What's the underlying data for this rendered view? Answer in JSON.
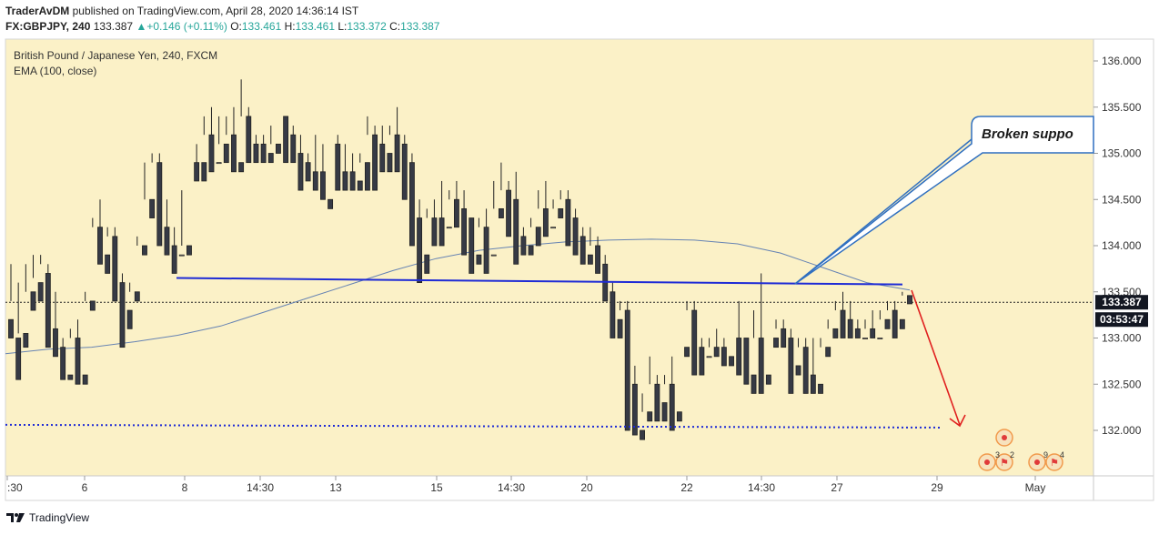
{
  "header": {
    "author": "TraderAvDM",
    "published": "published on TradingView.com, April 28, 2020 14:36:14 IST",
    "symbol": "FX:GBPJPY, 240",
    "last": "133.387",
    "change": "+0.146 (+0.11%)",
    "o_label": "O:",
    "o_val": "133.461",
    "h_label": "H:",
    "h_val": "133.461",
    "l_label": "L:",
    "l_val": "133.372",
    "c_label": "C:",
    "c_val": "133.387"
  },
  "legend": {
    "title": "British Pound / Japanese Yen, 240, FXCM",
    "indicator": "EMA (100, close)"
  },
  "annotation": {
    "text": "Broken suppo"
  },
  "badges": {
    "price": "133.387",
    "countdown": "03:53:47"
  },
  "markers": [
    "3",
    "2",
    "9",
    "4"
  ],
  "footer": {
    "brand": "TradingView"
  },
  "colors": {
    "background": "#fbf1c7",
    "up": "#ffffff",
    "down": "#363a45",
    "ema": "#6683b3",
    "support": "#1e2bd6",
    "arrow": "#e0201f",
    "callout": "#2f6fc0"
  },
  "chart_data": {
    "type": "candlestick",
    "title": "British Pound / Japanese Yen, 240, FXCM",
    "ylim": [
      131.6,
      136.3
    ],
    "y_ticks": [
      "136.000",
      "135.500",
      "135.000",
      "134.500",
      "134.000",
      "133.500",
      "133.000",
      "132.500",
      "132.000"
    ],
    "x_ticks": [
      ":30",
      "6",
      "8",
      "14:30",
      "13",
      "15",
      "14:30",
      "20",
      "22",
      "14:30",
      "27",
      "29",
      "May"
    ],
    "last_price": 133.387,
    "ema_100": [
      132.83,
      132.88,
      132.9,
      132.96,
      133.03,
      133.13,
      133.28,
      133.43,
      133.58,
      133.73,
      133.86,
      133.95,
      134.0,
      134.04,
      134.06,
      134.07,
      134.06,
      134.02,
      133.92,
      133.76,
      133.6,
      133.52
    ],
    "support_line": {
      "start": 133.65,
      "end": 133.58
    },
    "target_line": 132.03,
    "candles": [
      [
        133.2,
        133.8,
        133.4,
        133.0
      ],
      [
        133.0,
        133.6,
        133.05,
        132.55
      ],
      [
        133.05,
        133.8,
        133.5,
        132.9
      ],
      [
        133.5,
        133.9,
        133.65,
        133.3
      ],
      [
        133.6,
        133.9,
        133.8,
        133.4
      ],
      [
        133.7,
        133.8,
        133.1,
        132.9
      ],
      [
        133.1,
        133.5,
        132.9,
        132.8
      ],
      [
        132.9,
        133.0,
        132.6,
        132.55
      ],
      [
        132.6,
        133.1,
        133.0,
        132.55
      ],
      [
        133.0,
        133.2,
        132.6,
        132.5
      ],
      [
        132.6,
        133.5,
        133.4,
        132.5
      ],
      [
        133.4,
        134.3,
        134.2,
        133.3
      ],
      [
        134.2,
        134.5,
        133.9,
        133.8
      ],
      [
        133.9,
        134.2,
        134.1,
        133.7
      ],
      [
        134.1,
        134.2,
        133.6,
        133.4
      ],
      [
        133.6,
        133.7,
        133.3,
        132.9
      ],
      [
        133.3,
        133.6,
        133.5,
        133.1
      ],
      [
        133.5,
        134.1,
        134.0,
        133.4
      ],
      [
        134.0,
        134.9,
        134.5,
        133.9
      ],
      [
        134.5,
        135.0,
        134.9,
        134.3
      ],
      [
        134.9,
        135.0,
        134.2,
        134.0
      ],
      [
        134.2,
        134.5,
        134.0,
        133.9
      ],
      [
        134.0,
        134.2,
        133.9,
        133.7
      ],
      [
        133.9,
        134.6,
        134.0,
        133.9
      ],
      [
        134.0,
        134.9,
        134.9,
        133.9
      ],
      [
        134.9,
        135.1,
        134.9,
        134.7
      ],
      [
        134.9,
        135.4,
        135.2,
        134.7
      ],
      [
        135.2,
        135.5,
        134.9,
        134.8
      ],
      [
        134.9,
        135.4,
        135.1,
        134.9
      ],
      [
        135.1,
        135.4,
        135.2,
        134.9
      ],
      [
        135.2,
        135.5,
        134.9,
        134.8
      ],
      [
        134.9,
        135.8,
        135.4,
        134.8
      ],
      [
        135.4,
        135.5,
        135.1,
        134.9
      ],
      [
        135.1,
        135.2,
        135.1,
        134.9
      ],
      [
        135.1,
        135.2,
        135.0,
        134.9
      ],
      [
        135.0,
        135.3,
        135.1,
        134.9
      ],
      [
        135.1,
        135.4,
        135.4,
        135.0
      ],
      [
        135.4,
        135.4,
        135.2,
        134.9
      ],
      [
        135.2,
        135.3,
        135.0,
        134.9
      ],
      [
        135.0,
        135.2,
        134.9,
        134.6
      ],
      [
        134.9,
        135.0,
        134.8,
        134.7
      ],
      [
        134.8,
        135.2,
        134.8,
        134.6
      ],
      [
        134.8,
        135.1,
        134.5,
        134.5
      ],
      [
        134.5,
        135.1,
        135.1,
        134.4
      ],
      [
        135.1,
        135.2,
        134.8,
        134.6
      ],
      [
        134.8,
        135.1,
        134.8,
        134.6
      ],
      [
        134.8,
        135.0,
        134.7,
        134.6
      ],
      [
        134.7,
        135.0,
        134.9,
        134.6
      ],
      [
        134.9,
        135.4,
        135.2,
        134.6
      ],
      [
        135.2,
        135.3,
        135.1,
        134.6
      ],
      [
        135.1,
        135.3,
        135.0,
        134.8
      ],
      [
        135.0,
        135.3,
        135.2,
        134.8
      ],
      [
        135.2,
        135.5,
        135.1,
        134.8
      ],
      [
        135.1,
        135.2,
        134.9,
        134.5
      ],
      [
        134.9,
        135.0,
        134.3,
        134.0
      ],
      [
        134.3,
        134.5,
        133.9,
        133.6
      ],
      [
        133.9,
        134.4,
        134.3,
        133.7
      ],
      [
        134.3,
        134.5,
        134.3,
        134.0
      ],
      [
        134.3,
        134.7,
        134.2,
        134.0
      ],
      [
        134.2,
        134.6,
        134.5,
        134.2
      ],
      [
        134.5,
        134.7,
        134.4,
        134.2
      ],
      [
        134.4,
        134.6,
        134.3,
        133.9
      ],
      [
        134.3,
        134.3,
        133.9,
        133.7
      ],
      [
        133.9,
        134.3,
        134.2,
        133.8
      ],
      [
        134.2,
        134.4,
        133.9,
        133.7
      ],
      [
        133.9,
        134.7,
        134.4,
        133.9
      ],
      [
        134.4,
        134.9,
        134.6,
        134.3
      ],
      [
        134.6,
        134.7,
        134.5,
        134.1
      ],
      [
        134.5,
        134.8,
        134.1,
        133.8
      ],
      [
        134.1,
        134.2,
        134.0,
        133.9
      ],
      [
        134.0,
        134.3,
        134.2,
        133.9
      ],
      [
        134.2,
        134.6,
        134.4,
        134.0
      ],
      [
        134.4,
        134.7,
        134.2,
        134.1
      ],
      [
        134.2,
        134.5,
        134.4,
        134.2
      ],
      [
        134.4,
        134.6,
        134.5,
        134.3
      ],
      [
        134.5,
        134.6,
        134.3,
        134.0
      ],
      [
        134.3,
        134.4,
        134.1,
        133.9
      ],
      [
        134.1,
        134.2,
        133.9,
        133.8
      ],
      [
        133.9,
        134.2,
        134.0,
        133.8
      ],
      [
        134.0,
        134.1,
        133.8,
        133.7
      ],
      [
        133.8,
        133.9,
        133.5,
        133.4
      ],
      [
        133.5,
        133.6,
        133.2,
        133.0
      ],
      [
        133.2,
        133.4,
        133.3,
        133.0
      ],
      [
        133.3,
        133.4,
        132.5,
        132.0
      ],
      [
        132.5,
        132.7,
        132.0,
        131.95
      ],
      [
        132.0,
        132.4,
        132.2,
        131.9
      ],
      [
        132.2,
        132.8,
        132.5,
        132.1
      ],
      [
        132.5,
        132.6,
        132.3,
        132.1
      ],
      [
        132.3,
        132.6,
        132.5,
        132.1
      ],
      [
        132.5,
        132.8,
        132.2,
        132.0
      ],
      [
        132.2,
        132.9,
        132.9,
        132.1
      ],
      [
        132.9,
        133.4,
        133.3,
        132.8
      ],
      [
        133.3,
        133.4,
        132.9,
        132.6
      ],
      [
        132.9,
        133.0,
        132.8,
        132.6
      ],
      [
        132.8,
        133.0,
        132.9,
        132.8
      ],
      [
        132.9,
        133.1,
        132.9,
        132.8
      ],
      [
        132.9,
        133.0,
        132.8,
        132.7
      ],
      [
        132.8,
        133.0,
        133.0,
        132.7
      ],
      [
        133.0,
        133.4,
        133.0,
        132.6
      ],
      [
        133.0,
        133.0,
        132.6,
        132.5
      ],
      [
        132.6,
        133.3,
        133.0,
        132.4
      ],
      [
        133.0,
        133.7,
        132.6,
        132.4
      ],
      [
        132.6,
        133.0,
        133.0,
        132.5
      ],
      [
        133.0,
        133.2,
        133.1,
        132.9
      ],
      [
        133.1,
        133.2,
        133.0,
        132.9
      ],
      [
        133.0,
        133.1,
        132.7,
        132.4
      ],
      [
        132.7,
        133.0,
        132.9,
        132.6
      ],
      [
        132.9,
        133.0,
        132.6,
        132.4
      ],
      [
        132.6,
        133.0,
        132.5,
        132.4
      ],
      [
        132.5,
        133.0,
        132.9,
        132.4
      ],
      [
        132.9,
        133.2,
        133.1,
        132.8
      ],
      [
        133.1,
        133.4,
        133.3,
        133.0
      ],
      [
        133.3,
        133.5,
        133.2,
        133.0
      ],
      [
        133.2,
        133.4,
        133.1,
        133.0
      ],
      [
        133.1,
        133.2,
        133.0,
        133.0
      ],
      [
        133.0,
        133.2,
        133.1,
        133.0
      ],
      [
        133.1,
        133.3,
        133.0,
        133.0
      ],
      [
        133.0,
        133.3,
        133.2,
        133.0
      ],
      [
        133.2,
        133.4,
        133.3,
        133.1
      ],
      [
        133.3,
        133.4,
        133.2,
        133.0
      ],
      [
        133.2,
        133.5,
        133.46,
        133.1
      ],
      [
        133.46,
        133.46,
        133.387,
        133.37
      ]
    ]
  }
}
